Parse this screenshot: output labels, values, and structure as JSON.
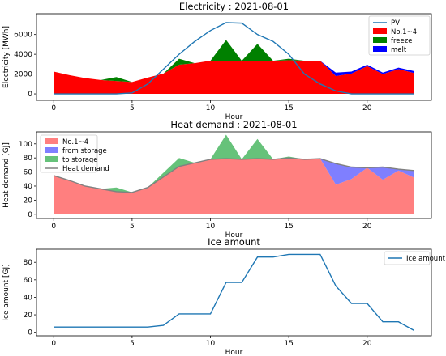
{
  "chart_data": [
    {
      "type": "area",
      "title": "Electricity : 2021-08-01",
      "xlabel": "Hour",
      "ylabel": "Electricity [MWh]",
      "xlim": [
        -1.1,
        24.1
      ],
      "ylim": [
        -650,
        8100
      ],
      "xticks": [
        0,
        5,
        10,
        15,
        20
      ],
      "yticks": [
        0,
        2000,
        4000,
        6000
      ],
      "x": [
        0,
        1,
        2,
        3,
        4,
        5,
        6,
        7,
        8,
        9,
        10,
        11,
        12,
        13,
        14,
        15,
        16,
        17,
        18,
        19,
        20,
        21,
        22,
        23
      ],
      "stacked": true,
      "series": [
        {
          "name": "No.1~4",
          "kind": "area",
          "color": "#ff0000",
          "values": [
            2250,
            1900,
            1600,
            1400,
            1300,
            1200,
            1650,
            2050,
            2950,
            3100,
            3350,
            3350,
            3350,
            3350,
            3350,
            3400,
            3350,
            3350,
            1800,
            2050,
            2800,
            2000,
            2500,
            2100
          ]
        },
        {
          "name": "freeze",
          "kind": "area",
          "color": "#008000",
          "values": [
            0,
            0,
            0,
            0,
            400,
            0,
            0,
            0,
            600,
            0,
            0,
            2100,
            0,
            1700,
            0,
            150,
            0,
            0,
            0,
            0,
            0,
            0,
            0,
            0
          ]
        },
        {
          "name": "melt",
          "kind": "area",
          "color": "#0000ff",
          "values": [
            0,
            0,
            0,
            0,
            0,
            0,
            0,
            0,
            0,
            0,
            0,
            0,
            0,
            0,
            0,
            0,
            0,
            0,
            350,
            200,
            150,
            150,
            150,
            200
          ]
        },
        {
          "name": "PV",
          "kind": "line",
          "color": "#1f77b4",
          "values": [
            0,
            0,
            0,
            0,
            0,
            100,
            1000,
            2500,
            4000,
            5300,
            6400,
            7200,
            7150,
            6000,
            5300,
            4000,
            2000,
            1000,
            300,
            0,
            0,
            0,
            0,
            0
          ]
        }
      ],
      "legend": "upper right"
    },
    {
      "type": "area",
      "title": "Heat demand : 2021-08-01",
      "xlabel": "Hour",
      "ylabel": "Heat demand [GJ]",
      "xlim": [
        -1.1,
        24.1
      ],
      "ylim": [
        -6,
        117
      ],
      "xticks": [
        0,
        5,
        10,
        15,
        20
      ],
      "yticks": [
        0,
        20,
        40,
        60,
        80,
        100
      ],
      "x": [
        0,
        1,
        2,
        3,
        4,
        5,
        6,
        7,
        8,
        9,
        10,
        11,
        12,
        13,
        14,
        15,
        16,
        17,
        18,
        19,
        20,
        21,
        22,
        23
      ],
      "stacked": true,
      "series": [
        {
          "name": "No.1~4",
          "kind": "area",
          "color": "#ff7f7f",
          "values": [
            55,
            48,
            40,
            36,
            32,
            31,
            38,
            53,
            68,
            73,
            78,
            79,
            78,
            79,
            78,
            80,
            78,
            79,
            42,
            50,
            66,
            49,
            62,
            52
          ]
        },
        {
          "name": "from storage",
          "kind": "area",
          "color": "#7f7fff",
          "values": [
            0,
            0,
            0,
            0,
            0,
            0,
            0,
            0,
            0,
            0,
            0,
            0,
            0,
            0,
            0,
            0,
            0,
            0,
            30,
            17,
            0,
            18,
            2,
            10
          ]
        },
        {
          "name": "to storage",
          "kind": "area",
          "color": "#66c27a",
          "values": [
            0,
            0,
            0,
            0,
            6,
            0,
            0,
            6,
            12,
            0,
            0,
            34,
            0,
            28,
            0,
            2,
            0,
            0,
            0,
            0,
            0,
            0,
            0,
            0
          ]
        },
        {
          "name": "Heat demand",
          "kind": "line",
          "color": "#808080",
          "values": [
            55,
            48,
            40,
            36,
            32,
            31,
            38,
            53,
            68,
            73,
            78,
            79,
            78,
            79,
            78,
            80,
            78,
            79,
            72,
            67,
            66,
            67,
            64,
            62
          ]
        }
      ],
      "legend": "upper left"
    },
    {
      "type": "line",
      "title": "Ice amount",
      "xlabel": "Hour",
      "ylabel": "Ice amount [GJ]",
      "xlim": [
        -1.1,
        24.1
      ],
      "ylim": [
        -4,
        95
      ],
      "xticks": [
        0,
        5,
        10,
        15,
        20
      ],
      "yticks": [
        0,
        20,
        40,
        60,
        80
      ],
      "x": [
        0,
        1,
        2,
        3,
        4,
        5,
        6,
        7,
        8,
        9,
        10,
        11,
        12,
        13,
        14,
        15,
        16,
        17,
        18,
        19,
        20,
        21,
        22,
        23
      ],
      "series": [
        {
          "name": "Ice amount",
          "kind": "line",
          "color": "#1f77b4",
          "values": [
            6,
            6,
            6,
            6,
            6,
            6,
            6,
            8,
            21,
            21,
            21,
            57,
            57,
            86,
            86,
            89,
            89,
            89,
            53,
            33,
            33,
            12,
            12,
            2
          ]
        }
      ],
      "legend": "upper right"
    }
  ]
}
